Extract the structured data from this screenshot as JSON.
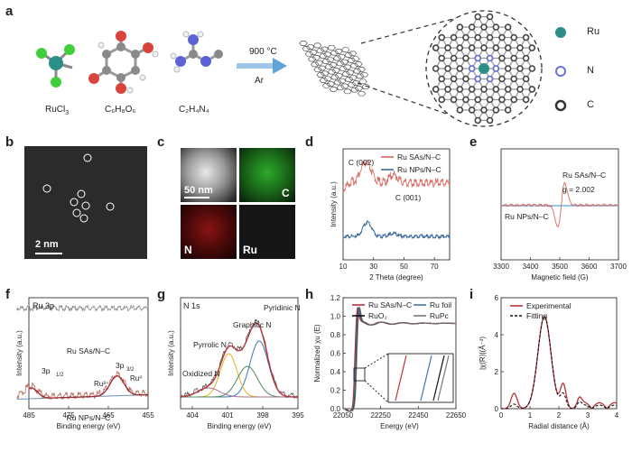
{
  "panels": {
    "a": {
      "letter": "a",
      "precursors": [
        "RuCl",
        "C₆H₈O₆",
        "C₂H₄N₄"
      ],
      "ru_sub": "3",
      "condition_temp": "900 °C",
      "condition_gas": "Ar",
      "legend": [
        "Ru",
        "N",
        "C"
      ],
      "colors": {
        "Ru": "#2a8f86",
        "N": "#6a73d8",
        "C": "#333333"
      }
    },
    "b": {
      "letter": "b",
      "scale": "2 nm"
    },
    "c": {
      "letter": "c",
      "scale": "50 nm",
      "channels": [
        "C",
        "N",
        "Ru"
      ]
    },
    "f": {
      "letter": "f",
      "title": "Ru 3p"
    },
    "g": {
      "letter": "g",
      "title": "N 1s"
    }
  },
  "chart_data": [
    {
      "id": "d",
      "type": "line",
      "letter": "d",
      "xlabel": "2 Theta (degree)",
      "ylabel": "Intensity (a.u.)",
      "xlim": [
        10,
        80
      ],
      "xticks": [
        10,
        30,
        50,
        70
      ],
      "series": [
        {
          "name": "Ru SAs/N–C",
          "color": "#d9675f"
        },
        {
          "name": "Ru NPs/N–C",
          "color": "#3c6b9c"
        }
      ],
      "annotations": [
        "C (002)",
        "C (001)"
      ]
    },
    {
      "id": "e",
      "type": "line",
      "letter": "e",
      "xlabel": "Magnetic field (G)",
      "ylabel": "",
      "xlim": [
        3300,
        3700
      ],
      "xticks": [
        3300,
        3400,
        3500,
        3600,
        3700
      ],
      "series": [
        {
          "name": "Ru SAs/N–C",
          "color": "#d9675f"
        },
        {
          "name": "Ru NPs/N–C",
          "color": "#6fb7e3"
        }
      ],
      "annotations": [
        "g = 2.002"
      ]
    },
    {
      "id": "f",
      "type": "line",
      "letter": "f",
      "xlabel": "Binding energy (eV)",
      "ylabel": "Intensity (a.u.)",
      "xlim": [
        485,
        455
      ],
      "xticks": [
        485,
        475,
        465,
        455
      ],
      "series": [
        {
          "name": "Ru SAs/N–C"
        },
        {
          "name": "Ru NPs/N–C"
        }
      ],
      "annotations": [
        "3p1/2",
        "3p3/2",
        "Ru³⁺",
        "Ru⁰"
      ]
    },
    {
      "id": "g",
      "type": "line",
      "letter": "g",
      "xlabel": "Binding energy (eV)",
      "ylabel": "Intensity (a.u.)",
      "xlim": [
        405,
        395
      ],
      "xticks": [
        404,
        401,
        398,
        395
      ],
      "series": [
        {
          "name": "Pyridinic N"
        },
        {
          "name": "Graphitic N"
        },
        {
          "name": "Pyrrolic N"
        },
        {
          "name": "Oxidized N"
        }
      ]
    },
    {
      "id": "h",
      "type": "line",
      "letter": "h",
      "xlabel": "Energy (eV)",
      "ylabel": "Normalized χu (E)",
      "xlim": [
        22050,
        22650
      ],
      "xticks": [
        22050,
        22250,
        22450,
        22650
      ],
      "ylim": [
        0,
        1.2
      ],
      "yticks": [
        0.0,
        0.2,
        0.4,
        0.6,
        0.8,
        1.0,
        1.2
      ],
      "series": [
        {
          "name": "Ru SAs/N–C",
          "color": "#b8333a"
        },
        {
          "name": "Ru foil",
          "color": "#3b77b5"
        },
        {
          "name": "RuO₂",
          "color": "#111111"
        },
        {
          "name": "RuPc",
          "color": "#777777"
        }
      ]
    },
    {
      "id": "i",
      "type": "line",
      "letter": "i",
      "xlabel": "Radial distance (Å)",
      "ylabel": "|χ(R)|(Å⁻³)",
      "xlim": [
        0,
        4
      ],
      "xticks": [
        0,
        1,
        2,
        3,
        4
      ],
      "ylim": [
        0,
        6
      ],
      "yticks": [
        0,
        2,
        4,
        6
      ],
      "series": [
        {
          "name": "Experimental",
          "color": "#b8333a"
        },
        {
          "name": "Fitting",
          "color": "#111111"
        }
      ]
    }
  ]
}
